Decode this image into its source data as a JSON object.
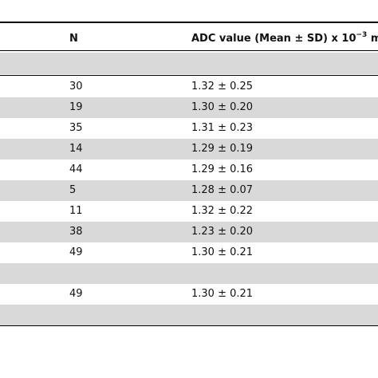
{
  "table": {
    "header": {
      "n": "N",
      "adc": "ADC value (Mean ± SD) x 10",
      "adc_exponent": "−3",
      "adc_unit": "m"
    },
    "rows": [
      null,
      {
        "n": "30",
        "adc": "1.32 ± 0.25"
      },
      {
        "n": "19",
        "adc": "1.30 ± 0.20"
      },
      {
        "n": "35",
        "adc": "1.31 ± 0.23"
      },
      {
        "n": "14",
        "adc": "1.29 ± 0.19"
      },
      {
        "n": "44",
        "adc": "1.29 ± 0.16"
      },
      {
        "n": "5",
        "adc": "1.28 ± 0.07"
      },
      {
        "n": "11",
        "adc": "1.32 ± 0.22"
      },
      {
        "n": "38",
        "adc": "1.23 ± 0.20"
      },
      {
        "n": "49",
        "adc": "1.30 ± 0.21"
      },
      null,
      {
        "n": "49",
        "adc": "1.30 ± 0.21"
      },
      null
    ]
  }
}
